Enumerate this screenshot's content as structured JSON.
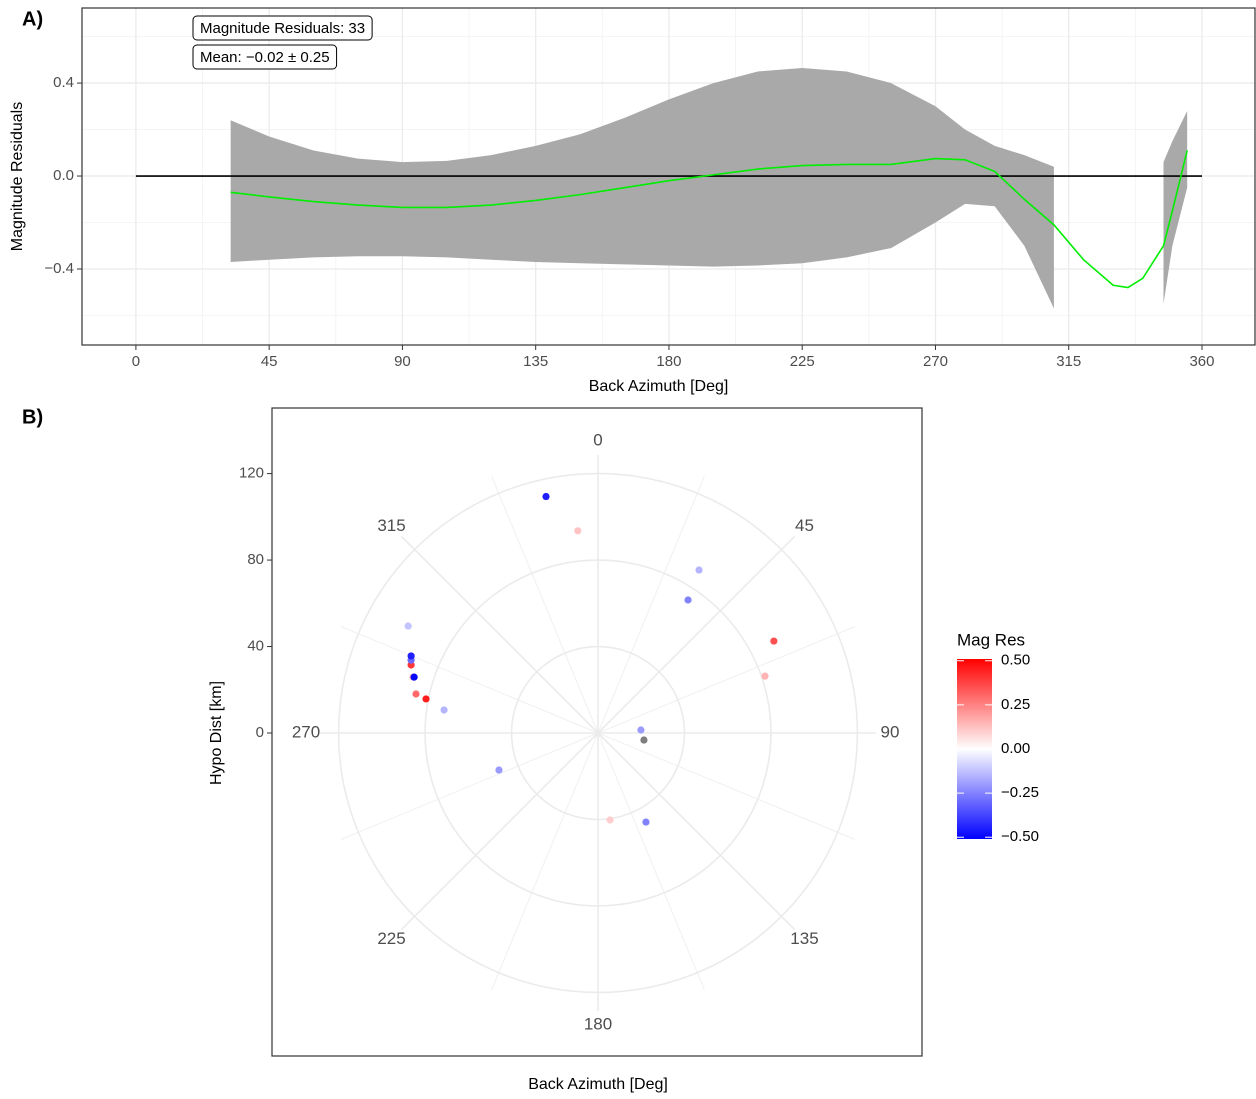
{
  "chart_data": [
    {
      "type": "line",
      "panel_label": "A)",
      "xlabel": "Back Azimuth [Deg]",
      "ylabel": "Magnitude Residuals",
      "annotations": [
        "Magnitude Residuals: 33",
        "Mean:  −0.02  ±  0.25"
      ],
      "x": [
        32,
        45,
        60,
        75,
        90,
        105,
        120,
        135,
        150,
        165,
        180,
        195,
        210,
        225,
        240,
        255,
        270,
        280,
        290,
        300,
        310,
        320,
        330,
        335,
        340,
        347,
        350,
        355
      ],
      "fit": [
        -0.07,
        -0.09,
        -0.11,
        -0.125,
        -0.135,
        -0.135,
        -0.125,
        -0.105,
        -0.08,
        -0.05,
        -0.02,
        0.005,
        0.03,
        0.045,
        0.05,
        0.05,
        0.075,
        0.07,
        0.02,
        -0.1,
        -0.21,
        -0.36,
        -0.47,
        -0.48,
        -0.44,
        -0.3,
        -0.15,
        0.11
      ],
      "upper": [
        0.24,
        0.17,
        0.11,
        0.075,
        0.06,
        0.065,
        0.09,
        0.13,
        0.18,
        0.25,
        0.33,
        0.4,
        0.45,
        0.465,
        0.45,
        0.4,
        0.3,
        0.2,
        0.13,
        0.09,
        0.04,
        null,
        null,
        null,
        null,
        0.06,
        0.15,
        0.28
      ],
      "lower": [
        -0.37,
        -0.36,
        -0.35,
        -0.345,
        -0.345,
        -0.35,
        -0.36,
        -0.37,
        -0.375,
        -0.38,
        -0.385,
        -0.39,
        -0.385,
        -0.375,
        -0.35,
        -0.31,
        -0.2,
        -0.12,
        -0.13,
        -0.3,
        -0.57,
        null,
        null,
        null,
        null,
        -0.55,
        -0.3,
        -0.05
      ],
      "line_color": "#00ee00",
      "band_color": "#a9a9a9",
      "hline": {
        "y": 0,
        "from": 0,
        "to": 360
      },
      "xlim": [
        -18.2,
        377.9
      ],
      "xticks": [
        0,
        45,
        90,
        135,
        180,
        225,
        270,
        315,
        360
      ],
      "ylim": [
        -0.727,
        0.723
      ],
      "yticks": [
        {
          "value": -0.4,
          "label": "−0.4"
        },
        {
          "value": 0,
          "label": "0.0"
        },
        {
          "value": 0.4,
          "label": "0.4"
        }
      ],
      "grid": true
    },
    {
      "type": "polar_scatter",
      "panel_label": "B)",
      "xlabel": "Back Azimuth [Deg]",
      "ylabel": "Hypo Dist [km]",
      "theta": [
        347.6,
        354.3,
        31.8,
        34.1,
        62.4,
        71.2,
        86,
        98.7,
        151.7,
        172.1,
        249.5,
        278.5,
        281.2,
        282.1,
        286.8,
        286.9,
        290,
        291.3,
        292.4,
        299.4
      ],
      "r": [
        112,
        94,
        88.7,
        74.3,
        91.8,
        81.6,
        19.9,
        21.5,
        46.8,
        40.6,
        48.9,
        72,
        81.1,
        86.1,
        89.4,
        88.9,
        92,
        92.8,
        93.5,
        100.8
      ],
      "values": [
        -0.45,
        0.12,
        -0.15,
        -0.25,
        0.35,
        0.15,
        -0.2,
        null,
        -0.25,
        0.1,
        -0.2,
        -0.15,
        0.45,
        0.3,
        0.15,
        -0.5,
        0.4,
        -0.3,
        -0.45,
        -0.12
      ],
      "na_color": "#7f7f7f",
      "rlim": [
        0,
        128.6
      ],
      "rticks": [
        0,
        40,
        80,
        120
      ],
      "thetaticks": [
        0,
        45,
        90,
        135,
        180,
        225,
        270,
        315
      ],
      "colorbar": {
        "title": "Mag Res",
        "lim": [
          -0.51,
          0.51
        ],
        "colors": [
          "#0000ff",
          "#ffffff",
          "#ff0000"
        ],
        "ticks": [
          {
            "value": 0.5,
            "label": "0.50"
          },
          {
            "value": 0.25,
            "label": "0.25"
          },
          {
            "value": 0,
            "label": "0.00"
          },
          {
            "value": -0.25,
            "label": "−0.25"
          },
          {
            "value": -0.5,
            "label": "−0.50"
          }
        ]
      },
      "grid": true
    }
  ]
}
